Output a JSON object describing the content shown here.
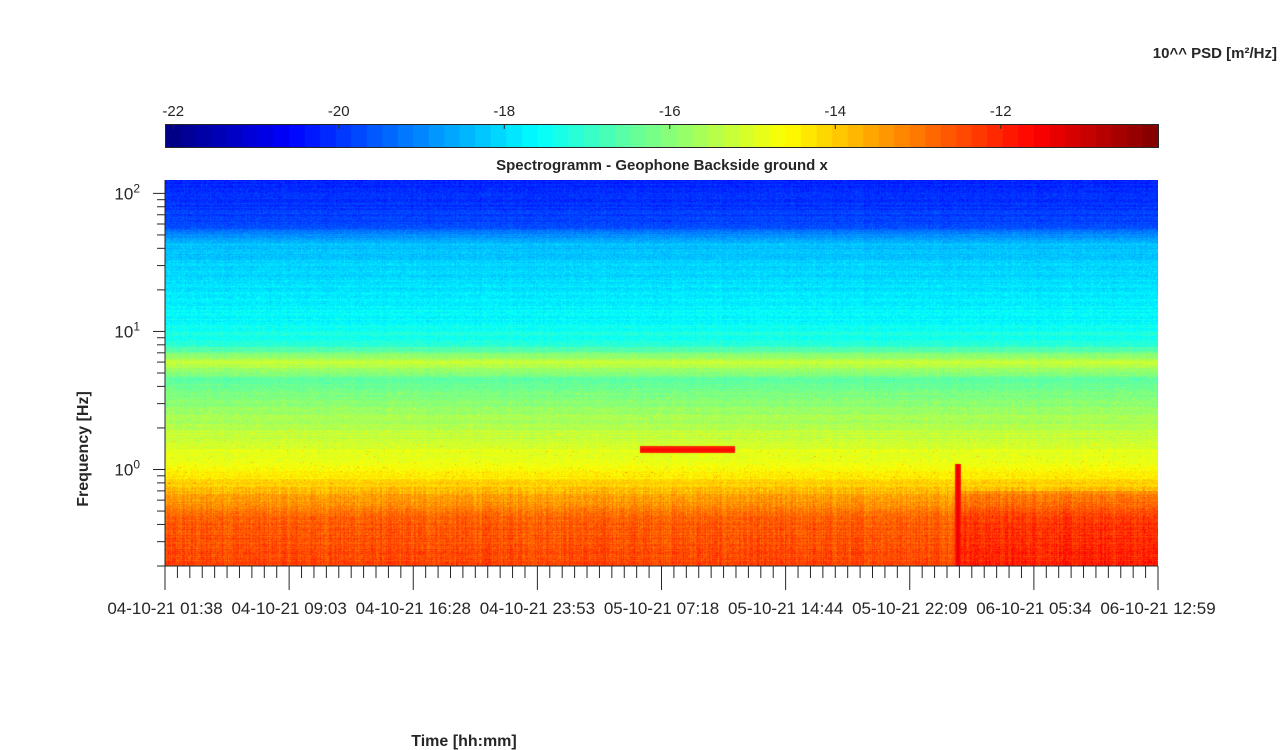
{
  "chart_data": {
    "type": "heatmap",
    "title": "Spectrogramm - Geophone Backside ground x",
    "xlabel": "Time [hh:mm]",
    "ylabel": "Frequency [Hz]",
    "x_scale": "time",
    "y_scale": "log",
    "ylim": [
      0.2,
      125
    ],
    "y_ticks": [
      {
        "value": 1,
        "base": "10",
        "exp": "0"
      },
      {
        "value": 10,
        "base": "10",
        "exp": "1"
      },
      {
        "value": 100,
        "base": "10",
        "exp": "2"
      }
    ],
    "x_ticks": [
      "04-10-21  01:38",
      "04-10-21  09:03",
      "04-10-21  16:28",
      "04-10-21  23:53",
      "05-10-21  07:18",
      "05-10-21  14:44",
      "05-10-21  22:09",
      "06-10-21  05:34",
      "06-10-21  12:59"
    ],
    "colorbar": {
      "label": "10^^ PSD [m²/Hz]",
      "ticks": [
        "-22",
        "-20",
        "-18",
        "-16",
        "-14",
        "-12"
      ],
      "tick_values": [
        -22,
        -20,
        -18,
        -16,
        -14,
        -12
      ],
      "range": [
        -22.1,
        -10.1
      ],
      "colormap": "jet"
    },
    "psd_log10_profile": [
      {
        "freq_hz": 0.2,
        "psd": -12.4
      },
      {
        "freq_hz": 0.45,
        "psd": -12.7
      },
      {
        "freq_hz": 0.7,
        "psd": -13.8
      },
      {
        "freq_hz": 1.0,
        "psd": -14.6
      },
      {
        "freq_hz": 2.0,
        "psd": -15.4
      },
      {
        "freq_hz": 4.5,
        "psd": -16.5
      },
      {
        "freq_hz": 6.0,
        "psd": -15.2
      },
      {
        "freq_hz": 8.0,
        "psd": -17.1
      },
      {
        "freq_hz": 12.0,
        "psd": -17.6
      },
      {
        "freq_hz": 20.0,
        "psd": -17.9
      },
      {
        "freq_hz": 45.0,
        "psd": -18.4
      },
      {
        "freq_hz": 60.0,
        "psd": -19.8
      },
      {
        "freq_hz": 125.0,
        "psd": -20.2
      }
    ],
    "features": [
      {
        "kind": "narrowband line",
        "freq_hz": 6.0,
        "psd": -15.2
      },
      {
        "kind": "tone",
        "freq_hz": 1.4,
        "time_start": "05-10-21  06:00",
        "time_end": "05-10-21  11:40",
        "psd": -11.6
      },
      {
        "kind": "impulse",
        "time": "06-10-21  01:00",
        "freq_range": [
          0.2,
          1.1
        ],
        "psd": -11.2
      },
      {
        "kind": "elevated noise",
        "time_start": "06-10-21  01:00",
        "time_end": "06-10-21  12:59",
        "freq_range": [
          0.2,
          0.7
        ],
        "psd": -11.9
      }
    ]
  }
}
